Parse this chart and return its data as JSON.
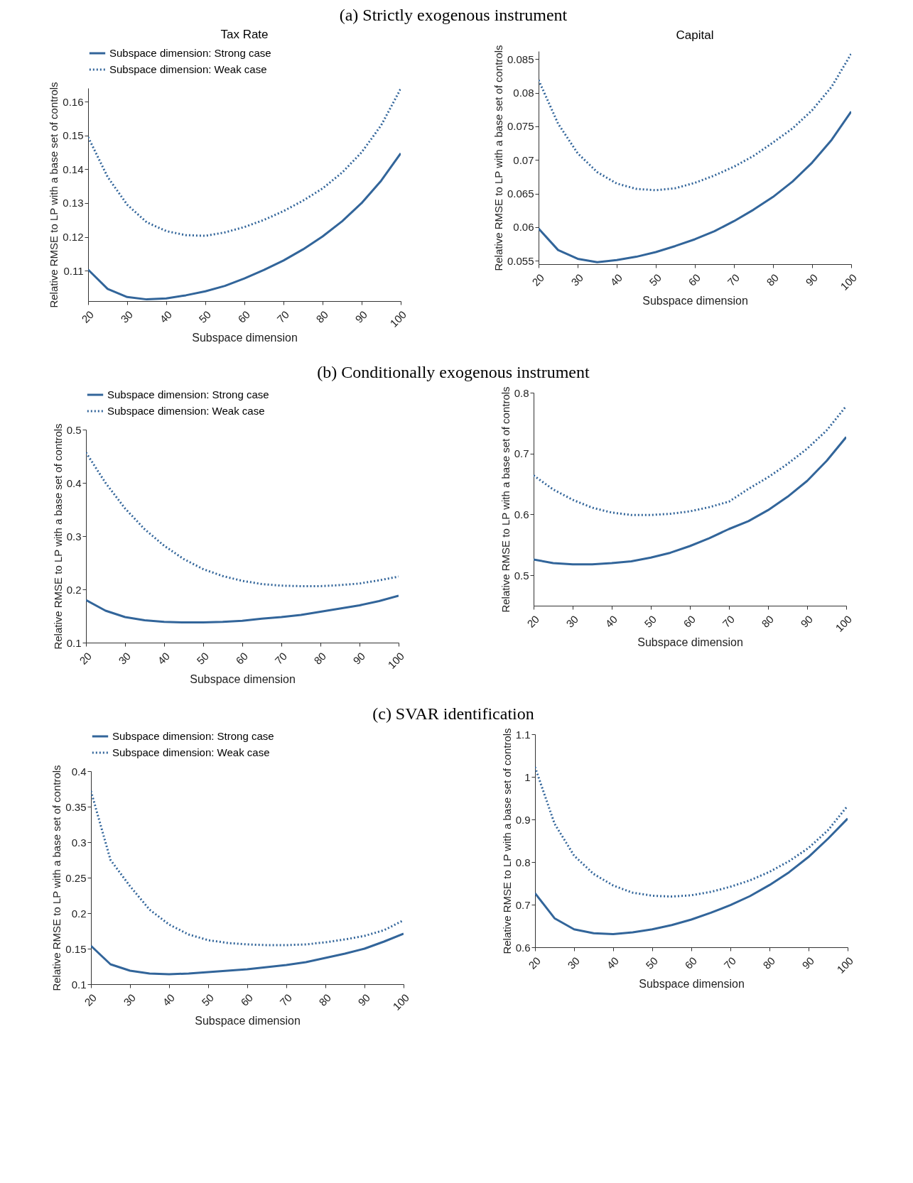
{
  "chart_data": [
    {
      "type": "other",
      "title": "(a) Strictly exogenous instrument"
    },
    {
      "type": "line",
      "title": "Tax Rate",
      "xlabel": "Subspace dimension",
      "ylabel": "Relative RMSE to LP with a base set of controls",
      "x": [
        20,
        25,
        30,
        35,
        40,
        45,
        50,
        55,
        60,
        65,
        70,
        75,
        80,
        85,
        90,
        95,
        100
      ],
      "xlim": [
        20,
        100
      ],
      "xticks": [
        20,
        30,
        40,
        50,
        60,
        70,
        80,
        90,
        100
      ],
      "ylim": [
        0.101,
        0.164
      ],
      "yticks": [
        0.11,
        0.12,
        0.13,
        0.14,
        0.15,
        0.16
      ],
      "legend": "top",
      "series": [
        {
          "name": "Subspace dimension: Strong case",
          "color": "#32659a",
          "line_style": "solid",
          "values": [
            0.1103,
            0.1046,
            0.1022,
            0.1015,
            0.1018,
            0.1027,
            0.1039,
            0.1055,
            0.1077,
            0.1102,
            0.113,
            0.1163,
            0.1201,
            0.1246,
            0.13,
            0.1366,
            0.1447
          ]
        },
        {
          "name": "Subspace dimension: Weak case",
          "color": "#32659a",
          "line_style": "dotted",
          "values": [
            0.1495,
            0.1377,
            0.1295,
            0.1243,
            0.1217,
            0.1205,
            0.1203,
            0.1213,
            0.1229,
            0.125,
            0.1276,
            0.1307,
            0.1343,
            0.139,
            0.145,
            0.153,
            0.1638
          ]
        }
      ]
    },
    {
      "type": "line",
      "title": "Capital",
      "xlabel": "Subspace dimension",
      "ylabel": "Relative RMSE to LP with a base set of controls",
      "x": [
        20,
        25,
        30,
        35,
        40,
        45,
        50,
        55,
        60,
        65,
        70,
        75,
        80,
        85,
        90,
        95,
        100
      ],
      "xlim": [
        20,
        100
      ],
      "xticks": [
        20,
        30,
        40,
        50,
        60,
        70,
        80,
        90,
        100
      ],
      "ylim": [
        0.0545,
        0.0862
      ],
      "yticks": [
        0.055,
        0.06,
        0.065,
        0.07,
        0.075,
        0.08,
        0.085
      ],
      "series": [
        {
          "color": "#32659a",
          "line_style": "solid",
          "values": [
            0.0598,
            0.0566,
            0.0553,
            0.0548,
            0.0551,
            0.0556,
            0.0563,
            0.0572,
            0.0582,
            0.0594,
            0.0609,
            0.0626,
            0.0645,
            0.0668,
            0.0696,
            0.073,
            0.0772
          ]
        },
        {
          "color": "#32659a",
          "line_style": "dotted",
          "values": [
            0.0819,
            0.0754,
            0.071,
            0.0682,
            0.0665,
            0.0657,
            0.0655,
            0.0658,
            0.0666,
            0.0677,
            0.069,
            0.0706,
            0.0726,
            0.0747,
            0.0774,
            0.0809,
            0.0858
          ]
        }
      ]
    },
    {
      "type": "other",
      "title": "(b) Conditionally exogenous instrument"
    },
    {
      "type": "line",
      "xlabel": "Subspace dimension",
      "ylabel": "Relative RMSE to LP with a base set of controls",
      "x": [
        20,
        25,
        30,
        35,
        40,
        45,
        50,
        55,
        60,
        65,
        70,
        75,
        80,
        85,
        90,
        95,
        100
      ],
      "xlim": [
        20,
        100
      ],
      "xticks": [
        20,
        30,
        40,
        50,
        60,
        70,
        80,
        90,
        100
      ],
      "ylim": [
        0.1,
        0.5
      ],
      "yticks": [
        0.1,
        0.2,
        0.3,
        0.4,
        0.5
      ],
      "legend": "top",
      "series": [
        {
          "name": "Subspace dimension: Strong case",
          "color": "#32659a",
          "line_style": "solid",
          "values": [
            0.18,
            0.16,
            0.148,
            0.142,
            0.139,
            0.138,
            0.138,
            0.139,
            0.141,
            0.145,
            0.148,
            0.152,
            0.158,
            0.164,
            0.17,
            0.178,
            0.188
          ]
        },
        {
          "name": "Subspace dimension: Weak case",
          "color": "#32659a",
          "line_style": "dotted",
          "values": [
            0.457,
            0.4,
            0.352,
            0.313,
            0.282,
            0.257,
            0.238,
            0.225,
            0.216,
            0.21,
            0.207,
            0.206,
            0.206,
            0.208,
            0.211,
            0.217,
            0.224
          ]
        }
      ]
    },
    {
      "type": "line",
      "xlabel": "Subspace dimension",
      "ylabel": "Relative RMSE to LP with a base set of controls",
      "x": [
        20,
        25,
        30,
        35,
        40,
        45,
        50,
        55,
        60,
        65,
        70,
        75,
        80,
        85,
        90,
        95,
        100
      ],
      "xlim": [
        20,
        100
      ],
      "xticks": [
        20,
        30,
        40,
        50,
        60,
        70,
        80,
        90,
        100
      ],
      "ylim": [
        0.45,
        0.8
      ],
      "yticks": [
        0.5,
        0.6,
        0.7,
        0.8
      ],
      "series": [
        {
          "color": "#32659a",
          "line_style": "solid",
          "values": [
            0.526,
            0.52,
            0.518,
            0.518,
            0.52,
            0.523,
            0.529,
            0.537,
            0.548,
            0.561,
            0.576,
            0.589,
            0.607,
            0.629,
            0.655,
            0.688,
            0.727
          ]
        },
        {
          "color": "#32659a",
          "line_style": "dotted",
          "values": [
            0.664,
            0.641,
            0.624,
            0.611,
            0.603,
            0.599,
            0.599,
            0.601,
            0.605,
            0.612,
            0.621,
            0.642,
            0.661,
            0.683,
            0.708,
            0.738,
            0.778
          ]
        }
      ]
    },
    {
      "type": "other",
      "title": "(c) SVAR identification"
    },
    {
      "type": "line",
      "xlabel": "Subspace dimension",
      "ylabel": "Relative RMSE to LP with a base set of controls",
      "x": [
        20,
        25,
        30,
        35,
        40,
        45,
        50,
        55,
        60,
        65,
        70,
        75,
        80,
        85,
        90,
        95,
        100
      ],
      "xlim": [
        20,
        100
      ],
      "xticks": [
        20,
        30,
        40,
        50,
        60,
        70,
        80,
        90,
        100
      ],
      "ylim": [
        0.1,
        0.4
      ],
      "yticks": [
        0.1,
        0.15,
        0.2,
        0.25,
        0.3,
        0.35,
        0.4
      ],
      "legend": "top",
      "series": [
        {
          "name": "Subspace dimension: Strong case",
          "color": "#32659a",
          "line_style": "solid",
          "values": [
            0.154,
            0.128,
            0.119,
            0.115,
            0.114,
            0.115,
            0.117,
            0.119,
            0.121,
            0.124,
            0.127,
            0.131,
            0.137,
            0.143,
            0.15,
            0.16,
            0.171
          ]
        },
        {
          "name": "Subspace dimension: Weak case",
          "color": "#32659a",
          "line_style": "dotted",
          "values": [
            0.372,
            0.275,
            0.238,
            0.205,
            0.184,
            0.17,
            0.162,
            0.158,
            0.156,
            0.155,
            0.155,
            0.156,
            0.159,
            0.163,
            0.168,
            0.176,
            0.19
          ]
        }
      ]
    },
    {
      "type": "line",
      "xlabel": "Subspace dimension",
      "ylabel": "Relative RMSE to LP with a base set of controls",
      "x": [
        20,
        25,
        30,
        35,
        40,
        45,
        50,
        55,
        60,
        65,
        70,
        75,
        80,
        85,
        90,
        95,
        100
      ],
      "xlim": [
        20,
        100
      ],
      "xticks": [
        20,
        30,
        40,
        50,
        60,
        70,
        80,
        90,
        100
      ],
      "ylim": [
        0.6,
        1.1
      ],
      "yticks": [
        0.6,
        0.7,
        0.8,
        0.9,
        1,
        1.1
      ],
      "series": [
        {
          "color": "#32659a",
          "line_style": "solid",
          "values": [
            0.727,
            0.668,
            0.642,
            0.633,
            0.631,
            0.635,
            0.642,
            0.652,
            0.665,
            0.681,
            0.699,
            0.72,
            0.746,
            0.776,
            0.812,
            0.855,
            0.902
          ]
        },
        {
          "color": "#32659a",
          "line_style": "dotted",
          "values": [
            1.023,
            0.89,
            0.815,
            0.772,
            0.745,
            0.728,
            0.721,
            0.719,
            0.722,
            0.73,
            0.742,
            0.757,
            0.777,
            0.802,
            0.833,
            0.875,
            0.932
          ]
        }
      ]
    }
  ]
}
